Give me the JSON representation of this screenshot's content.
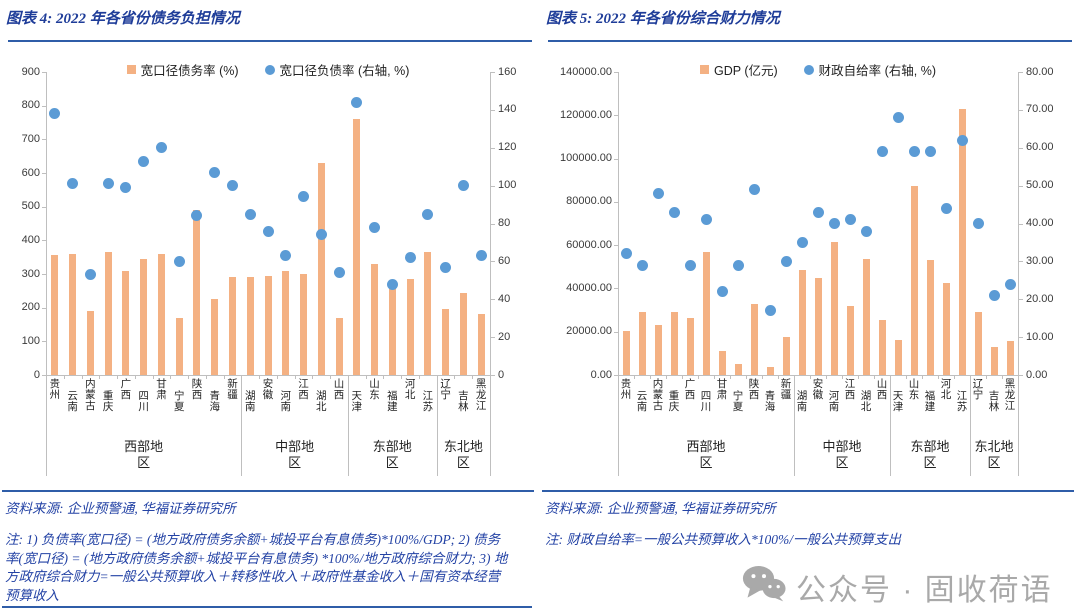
{
  "watermark": {
    "icon": "wechat-icon",
    "text": "公众号 · 固收荷语"
  },
  "colors": {
    "bar": "#F4B183",
    "dot": "#5B9BD5",
    "title": "#1F3D99",
    "rule": "#2F5DA8",
    "note_text": "#2443A5",
    "axis": "#BFBFBF",
    "watermark": "#A9A9A9"
  },
  "charts": [
    {
      "title": "图表 4: 2022 年各省份债务负担情况",
      "source": "资料来源: 企业预警通, 华福证券研究所",
      "note": "注: 1) 负债率(宽口径) = (地方政府债务余额+城投平台有息债务)*100%/GDP; 2) 债务率(宽口径) = (地方政府债务余额+城投平台有息债务) *100%/地方政府综合财力; 3) 地方政府综合财力=一般公共预算收入＋转移性收入＋政府性基金收入＋国有资本经营预算收入",
      "chart_data": {
        "type": "bar+scatter",
        "categories": [
          "贵州",
          "云南",
          "内蒙古",
          "重庆",
          "广西",
          "四川",
          "甘肃",
          "宁夏",
          "陕西",
          "青海",
          "新疆",
          "湖南",
          "安徽",
          "河南",
          "江西",
          "湖北",
          "山西",
          "天津",
          "山东",
          "福建",
          "河北",
          "江苏",
          "辽宁",
          "吉林",
          "黑龙江"
        ],
        "regions": [
          {
            "label": "西部地区",
            "count": 11
          },
          {
            "label": "中部地区",
            "count": 6
          },
          {
            "label": "东部地区",
            "count": 5
          },
          {
            "label": "东北地区",
            "count": 3
          }
        ],
        "series": [
          {
            "name": "宽口径债务率 (%)",
            "type": "bar",
            "axis": "left",
            "values": [
              355,
              360,
              190,
              365,
              310,
              345,
              360,
              170,
              490,
              225,
              290,
              290,
              295,
              310,
              300,
              630,
              170,
              760,
              330,
              265,
              285,
              365,
              195,
              245,
              180
            ]
          },
          {
            "name": "宽口径负债率 (右轴, %)",
            "type": "scatter",
            "axis": "right",
            "values": [
              138,
              101,
              53,
              101,
              99,
              113,
              120,
              60,
              84,
              107,
              100,
              85,
              76,
              63,
              94,
              74,
              54,
              144,
              78,
              48,
              62,
              85,
              57,
              100,
              63
            ]
          }
        ],
        "left_axis": {
          "min": 0,
          "max": 900,
          "ticks": [
            "900",
            "800",
            "700",
            "600",
            "500",
            "400",
            "300",
            "200",
            "100",
            "0"
          ]
        },
        "right_axis": {
          "min": 0,
          "max": 160,
          "ticks": [
            "160",
            "140",
            "120",
            "100",
            "80",
            "60",
            "40",
            "20",
            "0"
          ]
        },
        "grid": false,
        "legend_position": "top"
      }
    },
    {
      "title": "图表 5: 2022 年各省份综合财力情况",
      "source": "资料来源: 企业预警通, 华福证券研究所",
      "note": "注: 财政自给率=一般公共预算收入*100%/一般公共预算支出",
      "chart_data": {
        "type": "bar+scatter",
        "categories": [
          "贵州",
          "云南",
          "内蒙古",
          "重庆",
          "广西",
          "四川",
          "甘肃",
          "宁夏",
          "陕西",
          "青海",
          "新疆",
          "湖南",
          "安徽",
          "河南",
          "江西",
          "湖北",
          "山西",
          "天津",
          "山东",
          "福建",
          "河北",
          "江苏",
          "辽宁",
          "吉林",
          "黑龙江"
        ],
        "regions": [
          {
            "label": "西部地区",
            "count": 11
          },
          {
            "label": "中部地区",
            "count": 6
          },
          {
            "label": "东部地区",
            "count": 5
          },
          {
            "label": "东北地区",
            "count": 3
          }
        ],
        "series": [
          {
            "name": "GDP (亿元)",
            "type": "bar",
            "axis": "left",
            "values": [
              20165,
              28954,
              23159,
              29129,
              26301,
              56750,
              11202,
              5070,
              32773,
              3610,
              17741,
              48670,
              45045,
              61345,
              32075,
              53735,
              25643,
              16311,
              87435,
              53110,
              42370,
              122876,
              28975,
              13070,
              15901
            ]
          },
          {
            "name": "财政自给率 (右轴, %)",
            "type": "scatter",
            "axis": "right",
            "values": [
              32,
              29,
              48,
              43,
              29,
              41,
              22,
              29,
              49,
              17,
              30,
              35,
              43,
              40,
              41,
              38,
              59,
              68,
              59,
              59,
              44,
              62,
              40,
              21,
              24
            ]
          }
        ],
        "left_axis": {
          "min": 0,
          "max": 140000,
          "ticks": [
            "140000.00",
            "120000.00",
            "100000.00",
            "80000.00",
            "60000.00",
            "40000.00",
            "20000.00",
            "0.00"
          ]
        },
        "right_axis": {
          "min": 0,
          "max": 80,
          "ticks": [
            "80.00",
            "70.00",
            "60.00",
            "50.00",
            "40.00",
            "30.00",
            "20.00",
            "10.00",
            "0.00"
          ]
        },
        "grid": false,
        "legend_position": "top"
      }
    }
  ]
}
